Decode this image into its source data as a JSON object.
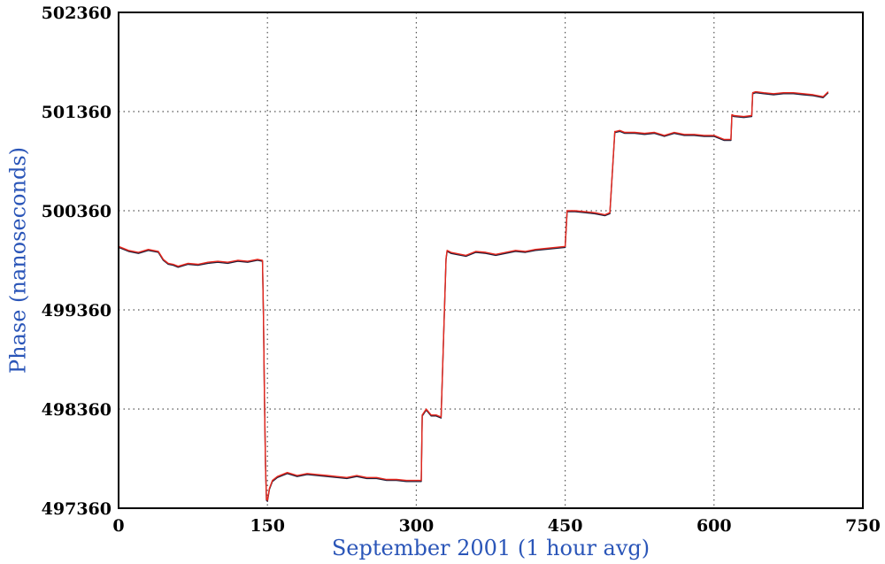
{
  "chart_data": {
    "type": "line",
    "title": "",
    "xlabel": "September 2001 (1 hour avg)",
    "ylabel": "Phase (nanoseconds)",
    "xlim": [
      0,
      750
    ],
    "ylim": [
      497360,
      502360
    ],
    "xticks": [
      0,
      150,
      300,
      450,
      600,
      750
    ],
    "yticks": [
      497360,
      498360,
      499360,
      500360,
      501360,
      502360
    ],
    "xtick_labels": [
      "0",
      "150",
      "300",
      "450",
      "600",
      "750"
    ],
    "ytick_labels": [
      "497360",
      "498360",
      "499360",
      "500360",
      "501360",
      "502360"
    ],
    "grid": true,
    "legend": "none",
    "colors": {
      "series_a": "#e8281e",
      "series_b": "#1f1f3a",
      "grid": "#555555",
      "axis_text": "#2a55b8"
    },
    "series": [
      {
        "color": "#e8281e",
        "x": [
          0,
          10,
          20,
          30,
          40,
          45,
          50,
          55,
          60,
          70,
          80,
          90,
          100,
          110,
          120,
          130,
          140,
          145,
          146,
          147,
          148,
          149,
          150,
          152,
          155,
          160,
          170,
          180,
          190,
          200,
          210,
          220,
          230,
          240,
          250,
          260,
          270,
          280,
          290,
          300,
          305,
          306,
          310,
          315,
          320,
          325,
          330,
          331,
          335,
          340,
          350,
          360,
          370,
          380,
          390,
          400,
          410,
          420,
          430,
          440,
          450,
          452,
          455,
          460,
          470,
          480,
          490,
          495,
          500,
          501,
          505,
          510,
          520,
          530,
          540,
          550,
          560,
          570,
          580,
          590,
          600,
          610,
          617,
          618,
          620,
          630,
          638,
          639,
          642,
          650,
          660,
          670,
          680,
          690,
          700,
          710,
          715
        ],
        "y": [
          500000,
          499960,
          499940,
          499970,
          499950,
          499870,
          499830,
          499820,
          499800,
          499830,
          499820,
          499840,
          499850,
          499840,
          499860,
          499850,
          499870,
          499860,
          499300,
          498500,
          497800,
          497450,
          497440,
          497560,
          497640,
          497680,
          497720,
          497690,
          497710,
          497700,
          497690,
          497680,
          497670,
          497690,
          497670,
          497670,
          497650,
          497650,
          497640,
          497640,
          497640,
          498300,
          498360,
          498300,
          498300,
          498280,
          499880,
          499960,
          499940,
          499930,
          499910,
          499950,
          499940,
          499920,
          499940,
          499960,
          499950,
          499970,
          499980,
          499990,
          500000,
          500360,
          500360,
          500360,
          500350,
          500340,
          500320,
          500340,
          501160,
          501160,
          501170,
          501150,
          501150,
          501140,
          501150,
          501120,
          501150,
          501130,
          501130,
          501120,
          501120,
          501080,
          501080,
          501330,
          501320,
          501310,
          501320,
          501550,
          501560,
          501550,
          501540,
          501550,
          501550,
          501540,
          501530,
          501510,
          501560
        ]
      },
      {
        "color": "#1f1f3a",
        "x": [
          0,
          10,
          20,
          30,
          40,
          45,
          50,
          55,
          60,
          70,
          80,
          90,
          100,
          110,
          120,
          130,
          140,
          145,
          146,
          147,
          148,
          149,
          150,
          152,
          155,
          160,
          170,
          180,
          190,
          200,
          210,
          220,
          230,
          240,
          250,
          260,
          270,
          280,
          290,
          300,
          305,
          306,
          310,
          315,
          320,
          325,
          330,
          331,
          335,
          340,
          350,
          360,
          370,
          380,
          390,
          400,
          410,
          420,
          430,
          440,
          450,
          452,
          455,
          460,
          470,
          480,
          490,
          495,
          500,
          501,
          505,
          510,
          520,
          530,
          540,
          550,
          560,
          570,
          580,
          590,
          600,
          610,
          617,
          618,
          620,
          630,
          638,
          639,
          642,
          650,
          660,
          670,
          680,
          690,
          700,
          710,
          715
        ],
        "y": [
          499990,
          499950,
          499930,
          499960,
          499940,
          499860,
          499820,
          499810,
          499790,
          499820,
          499810,
          499830,
          499840,
          499830,
          499850,
          499840,
          499860,
          499850,
          499290,
          498490,
          497790,
          497440,
          497430,
          497550,
          497630,
          497670,
          497710,
          497680,
          497700,
          497690,
          497680,
          497670,
          497660,
          497680,
          497660,
          497660,
          497640,
          497640,
          497630,
          497630,
          497630,
          498290,
          498350,
          498290,
          498290,
          498270,
          499870,
          499950,
          499930,
          499920,
          499900,
          499940,
          499930,
          499910,
          499930,
          499950,
          499940,
          499960,
          499970,
          499980,
          499990,
          500350,
          500350,
          500350,
          500340,
          500330,
          500310,
          500330,
          501150,
          501150,
          501160,
          501140,
          501140,
          501130,
          501140,
          501110,
          501140,
          501120,
          501120,
          501110,
          501110,
          501070,
          501070,
          501320,
          501310,
          501300,
          501310,
          501540,
          501550,
          501540,
          501530,
          501540,
          501540,
          501530,
          501520,
          501500,
          501550
        ]
      }
    ]
  }
}
